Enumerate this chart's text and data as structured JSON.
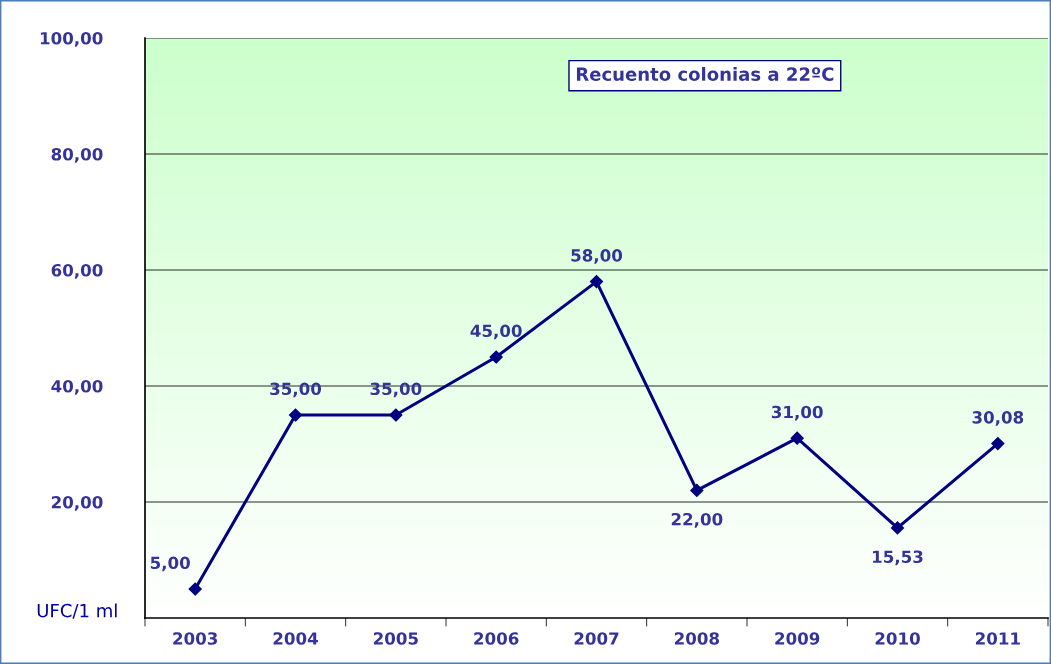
{
  "chart_data": {
    "type": "line",
    "title": "Recuento colonias a 22ºC",
    "ylabel": "UFC/1 ml",
    "categories": [
      "2003",
      "2004",
      "2005",
      "2006",
      "2007",
      "2008",
      "2009",
      "2010",
      "2011"
    ],
    "series": [
      {
        "color": "#000080",
        "values": [
          5,
          35,
          35,
          45,
          58,
          22,
          31,
          15.53,
          30.08
        ],
        "value_labels": [
          "5,00",
          "35,00",
          "35,00",
          "45,00",
          "58,00",
          "22,00",
          "31,00",
          "15,53",
          "30,08"
        ]
      }
    ],
    "ylim": [
      0,
      100
    ],
    "yticks": [
      {
        "value": 20,
        "label": "20,00"
      },
      {
        "value": 40,
        "label": "40,00"
      },
      {
        "value": 60,
        "label": "60,00"
      },
      {
        "value": 80,
        "label": "80,00"
      },
      {
        "value": 100,
        "label": "100,00"
      }
    ],
    "grid": "y",
    "marker": "diamond",
    "line_style": "solid"
  }
}
